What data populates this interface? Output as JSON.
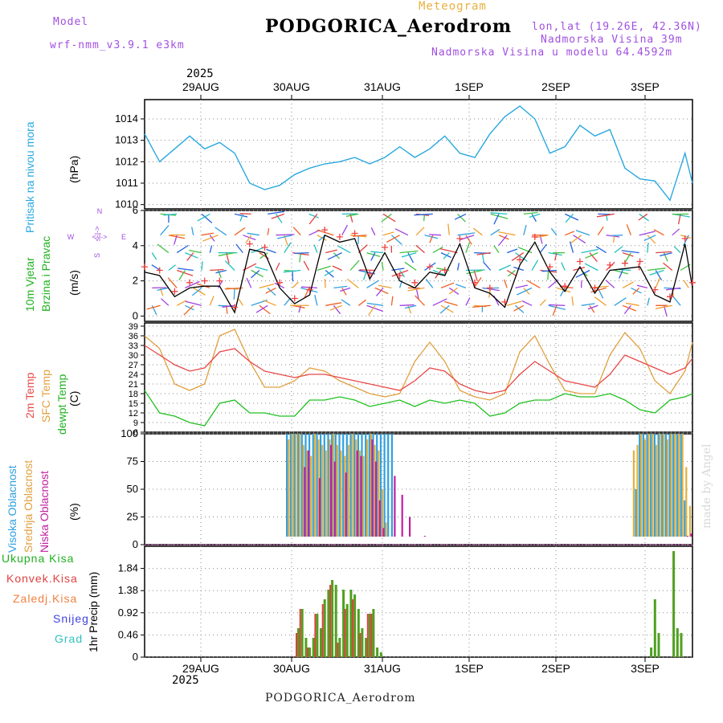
{
  "header": {
    "model_label": "Model",
    "model_name": "wrf-nmm_v3.9.1  e3km",
    "chart_kind": "Meteogram",
    "station": "PODGORICA_Aerodrom",
    "coords": "lon,lat (19.26E, 42.36N)",
    "altitude": "Nadmorska Visina 39m",
    "model_altitude": "Nadmorska Visina u modelu 64.4592m",
    "year": "2025",
    "credit": "made by Angel"
  },
  "footer": {
    "station": "PODGORICA_Aerodrom",
    "year": "2025"
  },
  "days": [
    "29AUG",
    "30AUG",
    "31AUG",
    "1SEP",
    "2SEP",
    "3SEP"
  ],
  "panels": {
    "pressure": {
      "label": "Pritisak na nivou mora",
      "unit": "(hPa)"
    },
    "wind": {
      "label1": "10m Vjetar",
      "label2": "Brzina i Pravac",
      "unit": "(m/s)",
      "compass_n": "N",
      "compass_w": "W",
      "compass_e": "E",
      "compass_s": "S",
      "compass_ns": "<-|->",
      "compass_ew": "<-|->"
    },
    "temp": {
      "label1": "2m Temp",
      "label2": "SFC Temp",
      "label3": "dewpt Temp",
      "unit": "(C)"
    },
    "cloud": {
      "label1": "Visoka Oblacnost",
      "label2": "Srednja Oblacnost",
      "label3": "Niska Oblacnost",
      "unit": "(%)"
    },
    "precip": {
      "legend": [
        "Ukupna Kisa",
        "Konvek.Kisa",
        "Zaledj.Kisa",
        "Snijeg",
        "Grad"
      ],
      "unit": "1hr Precip (mm)"
    }
  },
  "colors": {
    "pressure": "#2aa8e0",
    "t2m": "#e84848",
    "tsfc": "#e0a040",
    "dewpt": "#20c020",
    "cloud_high": "#30a0e0",
    "cloud_mid": "#e0b040",
    "cloud_low": "#c020a0",
    "rain_total": "#50a020",
    "rain_conv": "#e04040",
    "rain_frz": "#f08040",
    "snow": "#4040e0",
    "hail": "#30c0c0",
    "wind_line": "#000000",
    "gust_marker": "#f04040"
  },
  "chart_data": [
    {
      "type": "line",
      "title": "Pritisak na nivou mora",
      "ylabel": "hPa",
      "ylim": [
        1009.8,
        1014.9
      ],
      "yticks": [
        1010,
        1011,
        1012,
        1013,
        1014
      ],
      "x_range_hours": [
        0,
        146
      ],
      "series": [
        {
          "name": "MSLP",
          "x": [
            0,
            4,
            8,
            12,
            16,
            20,
            24,
            28,
            32,
            36,
            40,
            44,
            48,
            52,
            56,
            60,
            64,
            68,
            72,
            76,
            80,
            84,
            88,
            92,
            96,
            100,
            104,
            108,
            112,
            116,
            120,
            124,
            128,
            132,
            136,
            140,
            144,
            146
          ],
          "values": [
            1013.3,
            1012.0,
            1012.6,
            1013.2,
            1012.6,
            1012.9,
            1012.4,
            1011.0,
            1010.7,
            1010.9,
            1011.4,
            1011.7,
            1011.9,
            1012.0,
            1012.2,
            1011.9,
            1012.2,
            1012.7,
            1012.2,
            1012.6,
            1013.2,
            1012.4,
            1012.2,
            1013.3,
            1014.1,
            1014.6,
            1014.0,
            1012.4,
            1012.7,
            1013.7,
            1013.2,
            1013.5,
            1011.7,
            1011.2,
            1011.1,
            1010.2,
            1012.4,
            1011.0
          ]
        }
      ]
    },
    {
      "type": "line",
      "title": "10m Vjetar Brzina i Pravac",
      "ylabel": "m/s",
      "ylim": [
        -0.3,
        6
      ],
      "yticks": [
        0,
        2,
        4,
        6
      ],
      "x_range_hours": [
        0,
        146
      ],
      "series": [
        {
          "name": "wind speed",
          "x": [
            0,
            4,
            8,
            12,
            16,
            20,
            24,
            28,
            32,
            36,
            40,
            44,
            48,
            52,
            56,
            60,
            64,
            68,
            72,
            76,
            80,
            84,
            88,
            92,
            96,
            100,
            104,
            108,
            112,
            116,
            120,
            124,
            128,
            132,
            136,
            140,
            144,
            146
          ],
          "values": [
            2.5,
            2.3,
            1.1,
            1.6,
            1.7,
            1.7,
            0.2,
            3.8,
            3.6,
            1.6,
            0.7,
            1.2,
            4.6,
            4.2,
            4.4,
            2.1,
            3.6,
            2.0,
            1.6,
            2.5,
            2.3,
            4.1,
            1.6,
            1.3,
            0.5,
            2.9,
            4.2,
            2.5,
            1.4,
            2.8,
            1.3,
            2.6,
            2.7,
            2.8,
            1.2,
            0.8,
            4.1,
            1.6
          ]
        }
      ]
    },
    {
      "type": "line",
      "title": "2m Temp / SFC Temp / dewpt Temp",
      "ylabel": "C",
      "ylim": [
        6,
        40
      ],
      "yticks": [
        6,
        9,
        12,
        15,
        18,
        21,
        24,
        27,
        30,
        33,
        36,
        39
      ],
      "x_range_hours": [
        0,
        146
      ],
      "series": [
        {
          "name": "2m Temp",
          "x": [
            0,
            4,
            8,
            12,
            16,
            20,
            24,
            28,
            32,
            36,
            40,
            44,
            48,
            52,
            56,
            60,
            64,
            68,
            72,
            76,
            80,
            84,
            88,
            92,
            96,
            100,
            104,
            108,
            112,
            116,
            120,
            124,
            128,
            132,
            136,
            140,
            144,
            146
          ],
          "values": [
            33,
            30,
            27,
            25,
            26,
            31,
            32,
            28,
            25,
            24,
            23,
            24,
            24,
            23,
            22,
            21,
            20,
            19,
            22,
            26,
            25,
            21,
            19,
            18,
            19,
            24,
            28,
            25,
            22,
            21,
            20,
            24,
            30,
            28,
            26,
            24,
            26,
            29
          ]
        },
        {
          "name": "SFC Temp",
          "x": [
            0,
            4,
            8,
            12,
            16,
            20,
            24,
            28,
            32,
            36,
            40,
            44,
            48,
            52,
            56,
            60,
            64,
            68,
            72,
            76,
            80,
            84,
            88,
            92,
            96,
            100,
            104,
            108,
            112,
            116,
            120,
            124,
            128,
            132,
            136,
            140,
            144,
            146
          ],
          "values": [
            36,
            32,
            21,
            19,
            21,
            36,
            38,
            28,
            20,
            20,
            22,
            26,
            25,
            22,
            20,
            18,
            17,
            18,
            28,
            34,
            28,
            19,
            17,
            16,
            18,
            31,
            36,
            27,
            19,
            18,
            18,
            30,
            37,
            32,
            22,
            18,
            25,
            34
          ]
        },
        {
          "name": "dewpt Temp",
          "x": [
            0,
            4,
            8,
            12,
            16,
            20,
            24,
            28,
            32,
            36,
            40,
            44,
            48,
            52,
            56,
            60,
            64,
            68,
            72,
            76,
            80,
            84,
            88,
            92,
            96,
            100,
            104,
            108,
            112,
            116,
            120,
            124,
            128,
            132,
            136,
            140,
            144,
            146
          ],
          "values": [
            19,
            12,
            11,
            9,
            8,
            15,
            16,
            12,
            12,
            11,
            11,
            16,
            16,
            17,
            16,
            14,
            15,
            16,
            14,
            16,
            15,
            16,
            15,
            11,
            12,
            15,
            16,
            16,
            18,
            17,
            17,
            18,
            16,
            13,
            12,
            16,
            17,
            18
          ]
        }
      ]
    },
    {
      "type": "bar",
      "title": "Visoka / Srednja / Niska Oblacnost",
      "ylabel": "%",
      "ylim": [
        0,
        100
      ],
      "yticks": [
        0,
        25,
        50,
        75,
        100
      ],
      "x_range_hours": [
        0,
        146
      ],
      "series": [
        {
          "name": "Visoka Oblacnost",
          "x": [
            38,
            39,
            40,
            41,
            42,
            43,
            44,
            45,
            46,
            47,
            48,
            49,
            50,
            51,
            52,
            53,
            54,
            55,
            56,
            57,
            58,
            59,
            60,
            61,
            62,
            63,
            64,
            65,
            66,
            130,
            131,
            132,
            133,
            134,
            135,
            136,
            137,
            138,
            139,
            140,
            141,
            142,
            143,
            144,
            145
          ],
          "values": [
            100,
            100,
            100,
            100,
            100,
            100,
            100,
            100,
            100,
            100,
            100,
            100,
            100,
            100,
            100,
            100,
            100,
            100,
            100,
            100,
            100,
            100,
            100,
            100,
            100,
            100,
            100,
            100,
            100,
            0,
            50,
            100,
            100,
            100,
            100,
            100,
            100,
            100,
            100,
            100,
            100,
            100,
            100,
            40,
            0
          ]
        },
        {
          "name": "Srednja Oblacnost",
          "x": [
            38,
            39,
            40,
            41,
            42,
            43,
            44,
            45,
            46,
            47,
            48,
            49,
            50,
            51,
            52,
            53,
            54,
            55,
            56,
            57,
            58,
            59,
            60,
            61,
            62,
            63,
            64,
            65,
            66,
            67,
            68,
            69,
            70,
            71,
            72,
            73,
            74,
            75,
            129,
            130,
            131,
            132,
            133,
            134,
            135,
            136,
            137,
            138,
            139,
            140,
            141,
            142,
            143,
            144,
            145
          ],
          "values": [
            95,
            100,
            100,
            100,
            90,
            85,
            80,
            100,
            95,
            90,
            85,
            95,
            100,
            90,
            85,
            80,
            90,
            100,
            95,
            85,
            80,
            95,
            100,
            90,
            85,
            50,
            20,
            0,
            0,
            0,
            0,
            0,
            0,
            0,
            0,
            0,
            0,
            0,
            0,
            85,
            90,
            100,
            95,
            100,
            100,
            90,
            100,
            100,
            95,
            100,
            100,
            100,
            100,
            70,
            35
          ]
        },
        {
          "name": "Niska Oblacnost",
          "x": [
            38,
            42,
            43,
            46,
            49,
            50,
            53,
            56,
            57,
            60,
            61,
            62,
            63,
            66,
            68,
            70,
            74,
            129,
            130,
            131,
            132,
            135,
            138,
            140,
            144,
            145
          ],
          "values": [
            0,
            70,
            85,
            60,
            90,
            75,
            65,
            85,
            80,
            95,
            75,
            40,
            15,
            62,
            45,
            25,
            8,
            0,
            0,
            0,
            0,
            0,
            0,
            0,
            8,
            10
          ]
        }
      ]
    },
    {
      "type": "bar",
      "title": "1hr Precip",
      "ylabel": "mm",
      "ylim": [
        0,
        2.3
      ],
      "yticks": [
        0,
        0.46,
        0.92,
        1.38,
        1.84
      ],
      "x_range_hours": [
        0,
        146
      ],
      "series": [
        {
          "name": "Ukupna Kisa",
          "x": [
            41,
            42,
            43,
            44,
            45,
            46,
            47,
            48,
            49,
            50,
            51,
            52,
            53,
            54,
            55,
            56,
            57,
            58,
            59,
            60,
            61,
            62,
            63,
            135,
            136,
            137,
            141,
            142,
            143
          ],
          "values": [
            0.6,
            1.0,
            0.4,
            0.2,
            0.4,
            0.9,
            0.6,
            1.2,
            1.4,
            1.6,
            1.5,
            0.4,
            1.4,
            1.1,
            1.4,
            1.3,
            1.0,
            0.6,
            0.4,
            0.9,
            1.0,
            0.2,
            0.1,
            0.2,
            1.2,
            0.5,
            2.2,
            0.6,
            0.5
          ]
        },
        {
          "name": "Konvek.Kisa",
          "x": [
            41,
            42,
            44,
            46,
            48,
            50,
            52,
            54,
            56,
            58,
            60,
            61
          ],
          "values": [
            0.5,
            1.0,
            0.2,
            0.9,
            1.1,
            1.5,
            0.3,
            1.0,
            1.2,
            0.5,
            0.9,
            0.9
          ]
        }
      ]
    }
  ]
}
